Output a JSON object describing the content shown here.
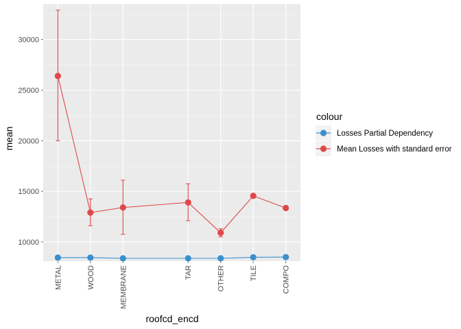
{
  "chart_data": {
    "type": "line",
    "xlabel": "roofcd_encd",
    "ylabel": "mean",
    "categories": [
      "METAL",
      "WOOD",
      "MEMBRANE",
      "TAR",
      "OTHER",
      "TILE",
      "COMPO"
    ],
    "x_positions": [
      1,
      2,
      3,
      5,
      6,
      7,
      8
    ],
    "ylim": [
      8100,
      33500
    ],
    "yticks": [
      10000,
      15000,
      20000,
      25000,
      30000
    ],
    "grid": true,
    "legend": {
      "title": "colour",
      "position": "right"
    },
    "series": [
      {
        "name": "Losses Partial Dependency",
        "color": "#3a8fce",
        "values": [
          8450,
          8450,
          8380,
          8380,
          8380,
          8480,
          8500
        ]
      },
      {
        "name": "Mean Losses with standard error",
        "color": "#e04848",
        "values": [
          26400,
          12900,
          13400,
          13900,
          10900,
          14550,
          13350
        ],
        "error_low": [
          20000,
          11600,
          10750,
          12100,
          10500,
          14500,
          13150
        ],
        "error_high": [
          32900,
          14250,
          16100,
          15750,
          11300,
          14650,
          13550
        ]
      }
    ]
  }
}
